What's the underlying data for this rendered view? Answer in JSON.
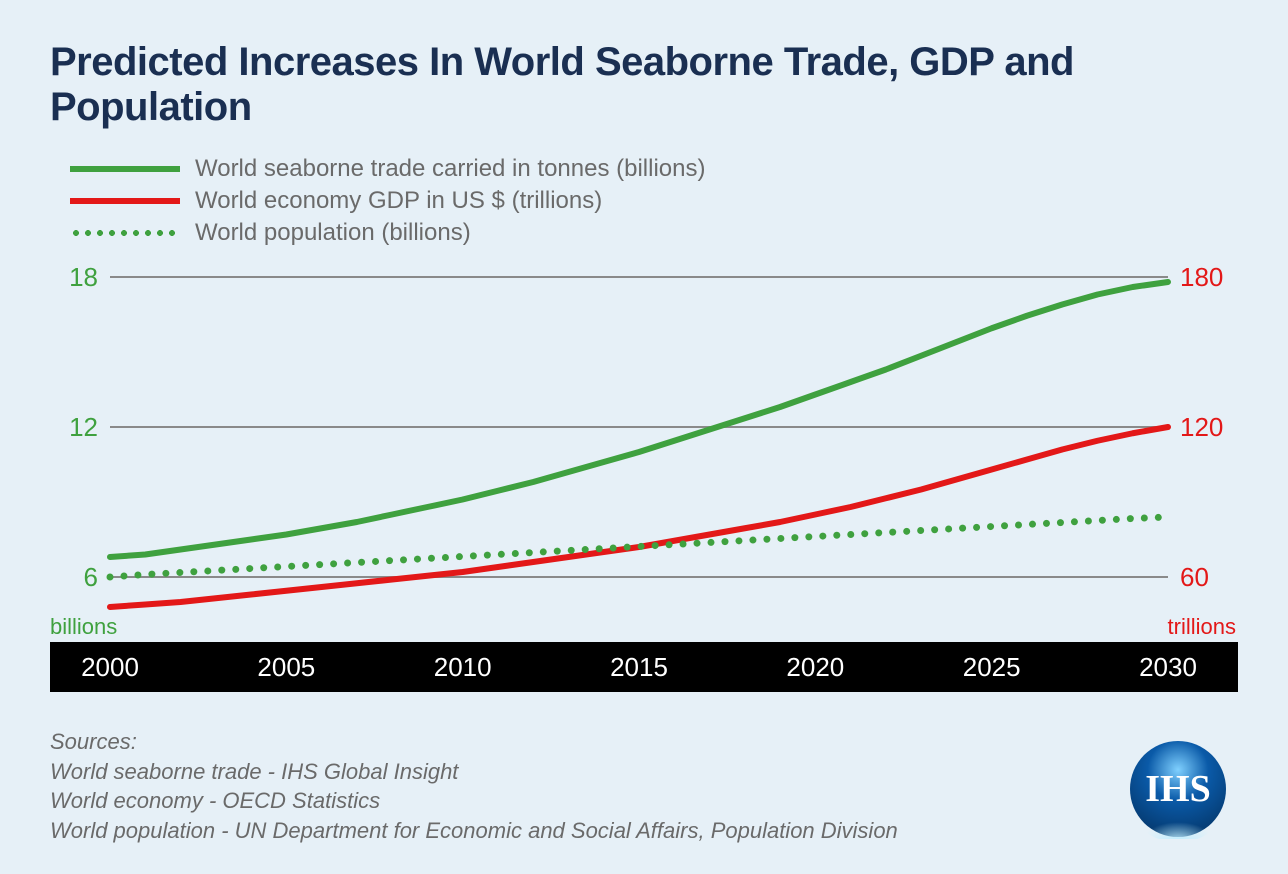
{
  "title": "Predicted Increases In World Seaborne Trade, GDP and Population",
  "legend": {
    "trade": {
      "label": "World seaborne trade carried in tonnes (billions)",
      "color": "#3fa13f",
      "style": "solid",
      "width": 6
    },
    "gdp": {
      "label": "World economy GDP in US $ (trillions)",
      "color": "#e31818",
      "style": "solid",
      "width": 6
    },
    "pop": {
      "label": "World population (billions)",
      "color": "#3fa13f",
      "style": "dotted",
      "width": 6
    }
  },
  "chart": {
    "type": "line",
    "background_color": "#e6f0f7",
    "grid_color": "#8a8a8a",
    "x": {
      "ticks": [
        2000,
        2005,
        2010,
        2015,
        2020,
        2025,
        2030
      ],
      "lim": [
        2000,
        2030
      ],
      "axis_bg": "#000000",
      "axis_text_color": "#ffffff",
      "axis_fontsize": 26
    },
    "y_left": {
      "ticks": [
        6,
        12,
        18
      ],
      "lim": [
        0,
        18
      ],
      "unit_label": "billions",
      "color": "#3fa13f",
      "fontsize": 26
    },
    "y_right": {
      "ticks": [
        60,
        120,
        180
      ],
      "lim": [
        0,
        180
      ],
      "unit_label": "trillions",
      "color": "#e31818",
      "fontsize": 26
    },
    "series": {
      "trade": {
        "axis": "left",
        "color": "#3fa13f",
        "style": "solid",
        "line_width": 6,
        "x": [
          2000,
          2001,
          2002,
          2003,
          2004,
          2005,
          2006,
          2007,
          2008,
          2009,
          2010,
          2011,
          2012,
          2013,
          2014,
          2015,
          2016,
          2017,
          2018,
          2019,
          2020,
          2021,
          2022,
          2023,
          2024,
          2025,
          2026,
          2027,
          2028,
          2029,
          2030
        ],
        "y": [
          6.8,
          6.9,
          7.1,
          7.3,
          7.5,
          7.7,
          7.95,
          8.2,
          8.5,
          8.8,
          9.1,
          9.45,
          9.8,
          10.2,
          10.6,
          11.0,
          11.45,
          11.9,
          12.35,
          12.8,
          13.3,
          13.8,
          14.3,
          14.85,
          15.4,
          15.95,
          16.45,
          16.9,
          17.3,
          17.6,
          17.8
        ]
      },
      "gdp": {
        "axis": "right",
        "color": "#e31818",
        "style": "solid",
        "line_width": 6,
        "x": [
          2000,
          2001,
          2002,
          2003,
          2004,
          2005,
          2006,
          2007,
          2008,
          2009,
          2010,
          2011,
          2012,
          2013,
          2014,
          2015,
          2016,
          2017,
          2018,
          2019,
          2020,
          2021,
          2022,
          2023,
          2024,
          2025,
          2026,
          2027,
          2028,
          2029,
          2030
        ],
        "y": [
          48,
          49,
          50,
          51.5,
          53,
          54.5,
          56,
          57.5,
          59,
          60.5,
          62,
          64,
          66,
          68,
          70,
          72,
          74.5,
          77,
          79.5,
          82,
          85,
          88,
          91.5,
          95,
          99,
          103,
          107,
          111,
          114.5,
          117.5,
          120
        ]
      },
      "pop": {
        "axis": "left",
        "color": "#3fa13f",
        "style": "dotted",
        "dot_radius": 3.5,
        "dot_gap": 14,
        "x": [
          2000,
          2001,
          2002,
          2003,
          2004,
          2005,
          2006,
          2007,
          2008,
          2009,
          2010,
          2011,
          2012,
          2013,
          2014,
          2015,
          2016,
          2017,
          2018,
          2019,
          2020,
          2021,
          2022,
          2023,
          2024,
          2025,
          2026,
          2027,
          2028,
          2029,
          2030
        ],
        "y": [
          6.0,
          6.1,
          6.18,
          6.26,
          6.34,
          6.42,
          6.5,
          6.58,
          6.66,
          6.74,
          6.82,
          6.9,
          6.98,
          7.06,
          7.14,
          7.22,
          7.3,
          7.38,
          7.46,
          7.54,
          7.62,
          7.7,
          7.78,
          7.86,
          7.94,
          8.02,
          8.1,
          8.18,
          8.26,
          8.34,
          8.4
        ]
      }
    }
  },
  "sources": {
    "heading": "Sources:",
    "lines": [
      "World seaborne trade - IHS Global Insight",
      "World economy - OECD Statistics",
      "World population - UN Department for Economic and Social Affairs, Population Division"
    ]
  },
  "logo": {
    "text": "IHS",
    "bg": "#0a5aa8",
    "highlight": "#7fd0ff"
  }
}
